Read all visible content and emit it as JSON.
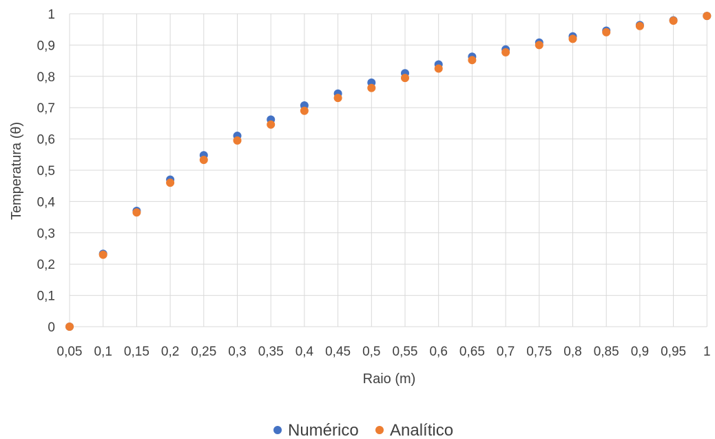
{
  "chart_data": {
    "type": "scatter",
    "title": "",
    "xlabel": "Raio (m)",
    "ylabel": "Temperatura (θ)",
    "x_ticks": [
      "0,05",
      "0,1",
      "0,15",
      "0,2",
      "0,25",
      "0,3",
      "0,35",
      "0,4",
      "0,45",
      "0,5",
      "0,55",
      "0,6",
      "0,65",
      "0,7",
      "0,75",
      "0,8",
      "0,85",
      "0,9",
      "0,95",
      "1"
    ],
    "y_ticks": [
      "0",
      "0,1",
      "0,2",
      "0,3",
      "0,4",
      "0,5",
      "0,6",
      "0,7",
      "0,8",
      "0,9",
      "1"
    ],
    "ylim": [
      0,
      1
    ],
    "grid": true,
    "legend_position": "bottom",
    "x": [
      0.05,
      0.1,
      0.15,
      0.2,
      0.25,
      0.3,
      0.35,
      0.4,
      0.45,
      0.5,
      0.55,
      0.6,
      0.65,
      0.7,
      0.75,
      0.8,
      0.85,
      0.9,
      0.95,
      1
    ],
    "series": [
      {
        "name": "Numérico",
        "color": "#4472C4",
        "values": [
          0.0,
          0.233,
          0.37,
          0.47,
          0.548,
          0.61,
          0.662,
          0.707,
          0.745,
          0.78,
          0.81,
          0.838,
          0.863,
          0.886,
          0.908,
          0.928,
          0.946,
          0.964,
          0.979,
          0.993
        ]
      },
      {
        "name": "Analítico",
        "color": "#ED7D31",
        "values": [
          0.0,
          0.23,
          0.365,
          0.46,
          0.533,
          0.595,
          0.646,
          0.69,
          0.731,
          0.763,
          0.795,
          0.825,
          0.852,
          0.877,
          0.9,
          0.92,
          0.941,
          0.961,
          0.978,
          0.993
        ]
      }
    ]
  }
}
